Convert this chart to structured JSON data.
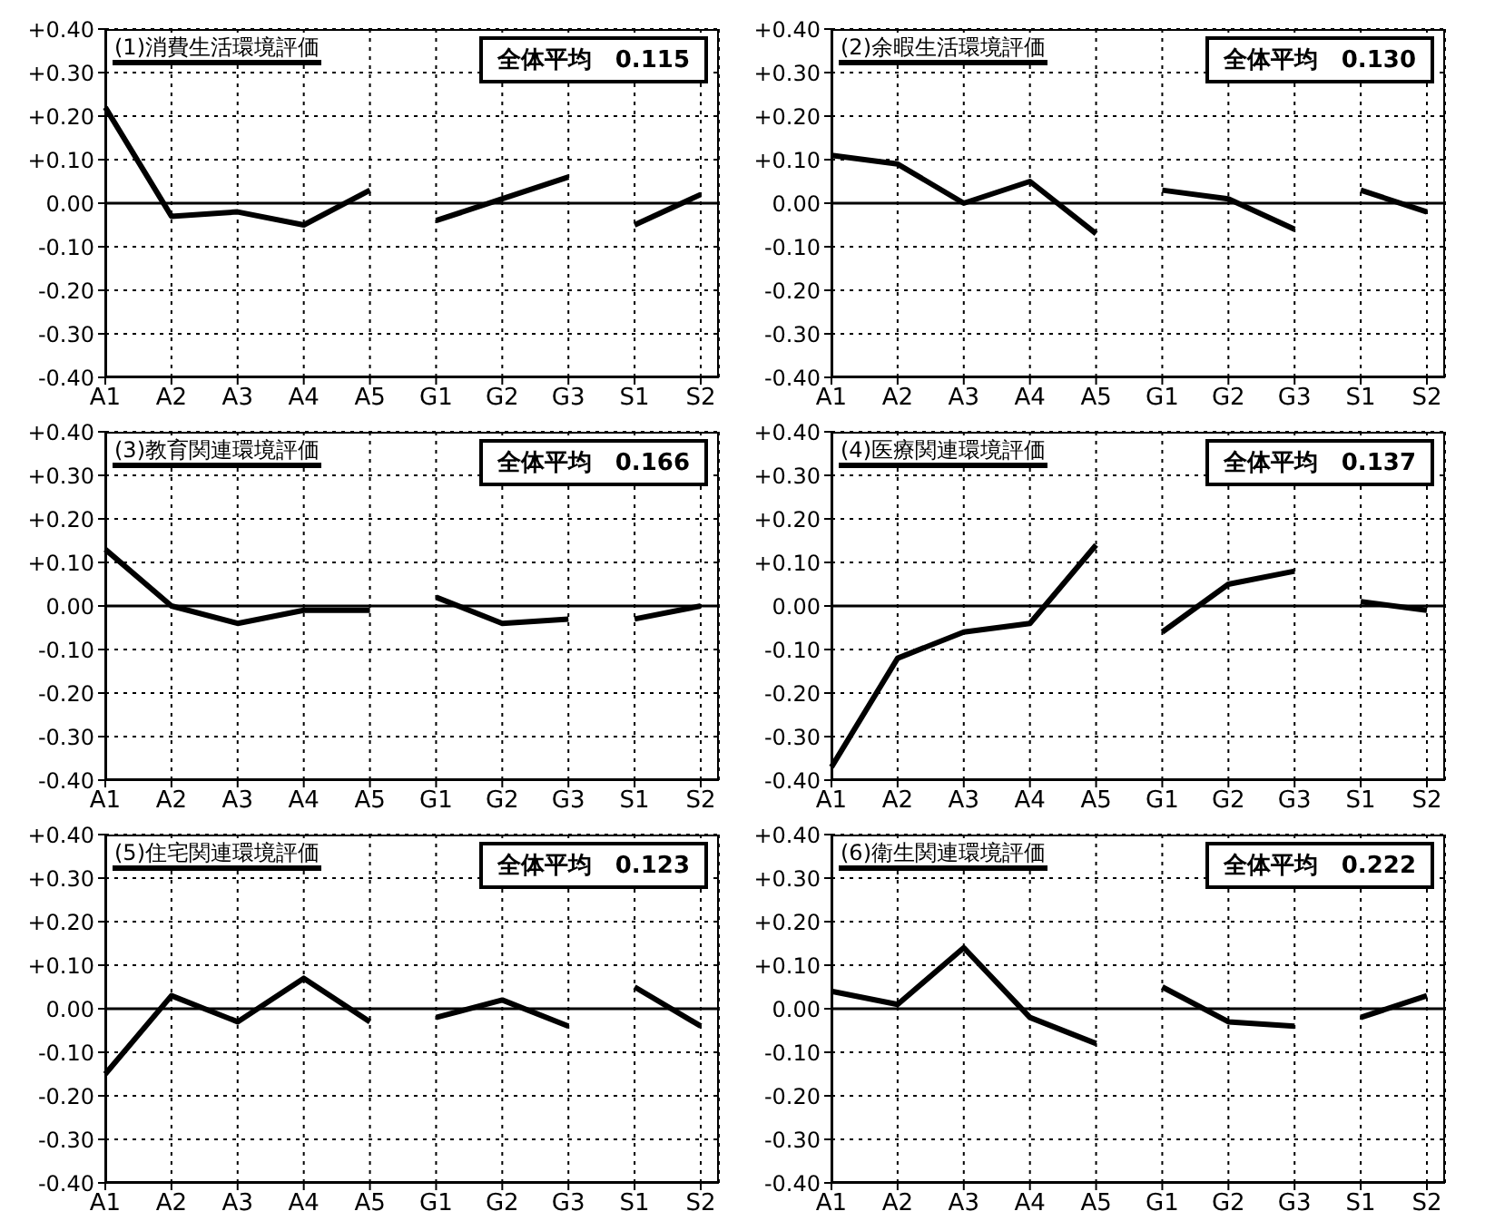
{
  "chart_data": [
    {
      "type": "line",
      "title": "(1)消費生活環境評価",
      "annotations": [
        "全体平均　0.115"
      ],
      "categories": [
        "A1",
        "A2",
        "A3",
        "A4",
        "A5",
        "G1",
        "G2",
        "G3",
        "S1",
        "S2"
      ],
      "ylim": [
        -0.4,
        0.4
      ],
      "yticks": [
        {
          "value": 0.4,
          "label": "+0.40"
        },
        {
          "value": 0.3,
          "label": "+0.30"
        },
        {
          "value": 0.2,
          "label": "+0.20"
        },
        {
          "value": 0.1,
          "label": "+0.10"
        },
        {
          "value": 0,
          "label": "0.00"
        },
        {
          "value": -0.1,
          "label": "-0.10"
        },
        {
          "value": -0.2,
          "label": "-0.20"
        },
        {
          "value": -0.3,
          "label": "-0.30"
        },
        {
          "value": -0.4,
          "label": "-0.40"
        }
      ],
      "grid": true,
      "marker": "none",
      "line_style": "solid",
      "ref_lines": [
        {
          "axis": "y",
          "value": 0,
          "color": "#000000"
        }
      ],
      "series": [
        {
          "color": "#000000",
          "values": [
            0.22,
            -0.03,
            -0.02,
            -0.05,
            0.03,
            null,
            null,
            null,
            null,
            null
          ]
        },
        {
          "color": "#000000",
          "values": [
            null,
            null,
            null,
            null,
            null,
            -0.04,
            0.01,
            0.06,
            null,
            null
          ]
        },
        {
          "color": "#000000",
          "values": [
            null,
            null,
            null,
            null,
            null,
            null,
            null,
            null,
            -0.05,
            0.02
          ]
        }
      ]
    },
    {
      "type": "line",
      "title": "(2)余暇生活環境評価",
      "annotations": [
        "全体平均　0.130"
      ],
      "categories": [
        "A1",
        "A2",
        "A3",
        "A4",
        "A5",
        "G1",
        "G2",
        "G3",
        "S1",
        "S2"
      ],
      "ylim": [
        -0.4,
        0.4
      ],
      "yticks": [
        {
          "value": 0.4,
          "label": "+0.40"
        },
        {
          "value": 0.3,
          "label": "+0.30"
        },
        {
          "value": 0.2,
          "label": "+0.20"
        },
        {
          "value": 0.1,
          "label": "+0.10"
        },
        {
          "value": 0,
          "label": "0.00"
        },
        {
          "value": -0.1,
          "label": "-0.10"
        },
        {
          "value": -0.2,
          "label": "-0.20"
        },
        {
          "value": -0.3,
          "label": "-0.30"
        },
        {
          "value": -0.4,
          "label": "-0.40"
        }
      ],
      "grid": true,
      "marker": "none",
      "line_style": "solid",
      "ref_lines": [
        {
          "axis": "y",
          "value": 0,
          "color": "#000000"
        }
      ],
      "series": [
        {
          "color": "#000000",
          "values": [
            0.11,
            0.09,
            0.0,
            0.05,
            -0.07,
            null,
            null,
            null,
            null,
            null
          ]
        },
        {
          "color": "#000000",
          "values": [
            null,
            null,
            null,
            null,
            null,
            0.03,
            0.01,
            -0.06,
            null,
            null
          ]
        },
        {
          "color": "#000000",
          "values": [
            null,
            null,
            null,
            null,
            null,
            null,
            null,
            null,
            0.03,
            -0.02
          ]
        }
      ]
    },
    {
      "type": "line",
      "title": "(3)教育関連環境評価",
      "annotations": [
        "全体平均　0.166"
      ],
      "categories": [
        "A1",
        "A2",
        "A3",
        "A4",
        "A5",
        "G1",
        "G2",
        "G3",
        "S1",
        "S2"
      ],
      "ylim": [
        -0.4,
        0.4
      ],
      "yticks": [
        {
          "value": 0.4,
          "label": "+0.40"
        },
        {
          "value": 0.3,
          "label": "+0.30"
        },
        {
          "value": 0.2,
          "label": "+0.20"
        },
        {
          "value": 0.1,
          "label": "+0.10"
        },
        {
          "value": 0,
          "label": "0.00"
        },
        {
          "value": -0.1,
          "label": "-0.10"
        },
        {
          "value": -0.2,
          "label": "-0.20"
        },
        {
          "value": -0.3,
          "label": "-0.30"
        },
        {
          "value": -0.4,
          "label": "-0.40"
        }
      ],
      "grid": true,
      "marker": "none",
      "line_style": "solid",
      "ref_lines": [
        {
          "axis": "y",
          "value": 0,
          "color": "#000000"
        }
      ],
      "series": [
        {
          "color": "#000000",
          "values": [
            0.13,
            0.0,
            -0.04,
            -0.01,
            -0.01,
            null,
            null,
            null,
            null,
            null
          ]
        },
        {
          "color": "#000000",
          "values": [
            null,
            null,
            null,
            null,
            null,
            0.02,
            -0.04,
            -0.03,
            null,
            null
          ]
        },
        {
          "color": "#000000",
          "values": [
            null,
            null,
            null,
            null,
            null,
            null,
            null,
            null,
            -0.03,
            0.0
          ]
        }
      ]
    },
    {
      "type": "line",
      "title": "(4)医療関連環境評価",
      "annotations": [
        "全体平均　0.137"
      ],
      "categories": [
        "A1",
        "A2",
        "A3",
        "A4",
        "A5",
        "G1",
        "G2",
        "G3",
        "S1",
        "S2"
      ],
      "ylim": [
        -0.4,
        0.4
      ],
      "yticks": [
        {
          "value": 0.4,
          "label": "+0.40"
        },
        {
          "value": 0.3,
          "label": "+0.30"
        },
        {
          "value": 0.2,
          "label": "+0.20"
        },
        {
          "value": 0.1,
          "label": "+0.10"
        },
        {
          "value": 0,
          "label": "0.00"
        },
        {
          "value": -0.1,
          "label": "-0.10"
        },
        {
          "value": -0.2,
          "label": "-0.20"
        },
        {
          "value": -0.3,
          "label": "-0.30"
        },
        {
          "value": -0.4,
          "label": "-0.40"
        }
      ],
      "grid": true,
      "marker": "none",
      "line_style": "solid",
      "ref_lines": [
        {
          "axis": "y",
          "value": 0,
          "color": "#000000"
        }
      ],
      "series": [
        {
          "color": "#000000",
          "values": [
            -0.37,
            -0.12,
            -0.06,
            -0.04,
            0.14,
            null,
            null,
            null,
            null,
            null
          ]
        },
        {
          "color": "#000000",
          "values": [
            null,
            null,
            null,
            null,
            null,
            -0.06,
            0.05,
            0.08,
            null,
            null
          ]
        },
        {
          "color": "#000000",
          "values": [
            null,
            null,
            null,
            null,
            null,
            null,
            null,
            null,
            0.01,
            -0.01
          ]
        }
      ]
    },
    {
      "type": "line",
      "title": "(5)住宅関連環境評価",
      "annotations": [
        "全体平均　0.123"
      ],
      "categories": [
        "A1",
        "A2",
        "A3",
        "A4",
        "A5",
        "G1",
        "G2",
        "G3",
        "S1",
        "S2"
      ],
      "ylim": [
        -0.4,
        0.4
      ],
      "yticks": [
        {
          "value": 0.4,
          "label": "+0.40"
        },
        {
          "value": 0.3,
          "label": "+0.30"
        },
        {
          "value": 0.2,
          "label": "+0.20"
        },
        {
          "value": 0.1,
          "label": "+0.10"
        },
        {
          "value": 0,
          "label": "0.00"
        },
        {
          "value": -0.1,
          "label": "-0.10"
        },
        {
          "value": -0.2,
          "label": "-0.20"
        },
        {
          "value": -0.3,
          "label": "-0.30"
        },
        {
          "value": -0.4,
          "label": "-0.40"
        }
      ],
      "grid": true,
      "marker": "none",
      "line_style": "solid",
      "ref_lines": [
        {
          "axis": "y",
          "value": 0,
          "color": "#000000"
        }
      ],
      "series": [
        {
          "color": "#000000",
          "values": [
            -0.15,
            0.03,
            -0.03,
            0.07,
            -0.03,
            null,
            null,
            null,
            null,
            null
          ]
        },
        {
          "color": "#000000",
          "values": [
            null,
            null,
            null,
            null,
            null,
            -0.02,
            0.02,
            -0.04,
            null,
            null
          ]
        },
        {
          "color": "#000000",
          "values": [
            null,
            null,
            null,
            null,
            null,
            null,
            null,
            null,
            0.05,
            -0.04
          ]
        }
      ]
    },
    {
      "type": "line",
      "title": "(6)衛生関連環境評価",
      "annotations": [
        "全体平均　0.222"
      ],
      "categories": [
        "A1",
        "A2",
        "A3",
        "A4",
        "A5",
        "G1",
        "G2",
        "G3",
        "S1",
        "S2"
      ],
      "ylim": [
        -0.4,
        0.4
      ],
      "yticks": [
        {
          "value": 0.4,
          "label": "+0.40"
        },
        {
          "value": 0.3,
          "label": "+0.30"
        },
        {
          "value": 0.2,
          "label": "+0.20"
        },
        {
          "value": 0.1,
          "label": "+0.10"
        },
        {
          "value": 0,
          "label": "0.00"
        },
        {
          "value": -0.1,
          "label": "-0.10"
        },
        {
          "value": -0.2,
          "label": "-0.20"
        },
        {
          "value": -0.3,
          "label": "-0.30"
        },
        {
          "value": -0.4,
          "label": "-0.40"
        }
      ],
      "grid": true,
      "marker": "none",
      "line_style": "solid",
      "ref_lines": [
        {
          "axis": "y",
          "value": 0,
          "color": "#000000"
        }
      ],
      "series": [
        {
          "color": "#000000",
          "values": [
            0.04,
            0.01,
            0.14,
            -0.02,
            -0.08,
            null,
            null,
            null,
            null,
            null
          ]
        },
        {
          "color": "#000000",
          "values": [
            null,
            null,
            null,
            null,
            null,
            0.05,
            -0.03,
            -0.04,
            null,
            null
          ]
        },
        {
          "color": "#000000",
          "values": [
            null,
            null,
            null,
            null,
            null,
            null,
            null,
            null,
            -0.02,
            0.03
          ]
        }
      ]
    }
  ]
}
